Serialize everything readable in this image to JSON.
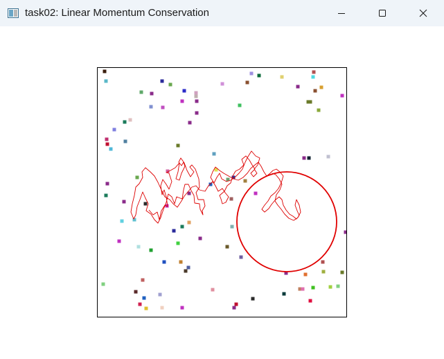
{
  "window": {
    "title": "task02: Linear Momentum Conservation",
    "icon": "app-window-icon",
    "controls": [
      "minimize-icon",
      "maximize-icon",
      "close-icon"
    ]
  },
  "simulation": {
    "border_color": "#000000",
    "big_particle_color": "#e00000",
    "trail_color": "#dd0000"
  }
}
